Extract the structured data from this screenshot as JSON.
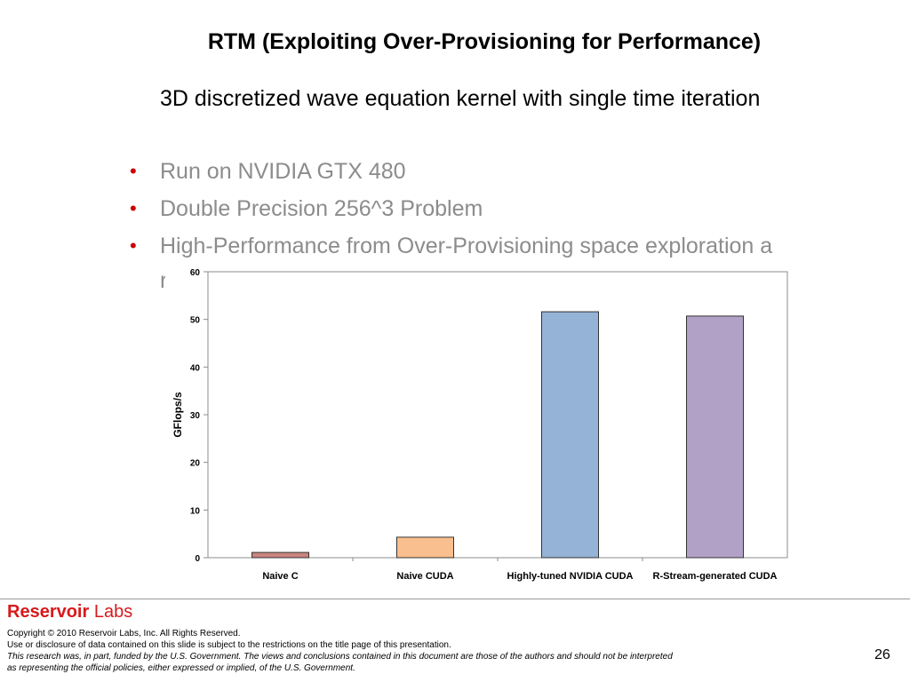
{
  "slide": {
    "title": "RTM (Exploiting Over-Provisioning for Performance)",
    "intro": "3D discretized wave equation kernel with single time iteration",
    "bullets": [
      "Run on NVIDIA GTX 480",
      "Double Precision 256^3 Problem",
      "High-Performance from Over-Provisioning space exploration a",
      "r"
    ],
    "page_number": "26"
  },
  "chart_data": {
    "type": "bar",
    "categories": [
      "Naive C",
      "Naive CUDA",
      "Highly-tuned NVIDIA CUDA",
      "R-Stream-generated CUDA"
    ],
    "values": [
      1.1,
      4.3,
      51.6,
      50.7
    ],
    "colors": [
      "#c9857f",
      "#f9bf8e",
      "#95b3d7",
      "#b2a1c7"
    ],
    "ylabel": "GFlops/s",
    "ylim": [
      0,
      60
    ],
    "yticks": [
      "0",
      "10",
      "20",
      "30",
      "40",
      "50",
      "60"
    ],
    "grid": false
  },
  "footer": {
    "logo_bold": "Reservoir",
    "logo_light": "Labs",
    "copyright": "Copyright © 2010 Reservoir Labs, Inc.  All Rights Reserved.",
    "disclosure": "Use or disclosure of data contained on this slide is subject to the restrictions on the title page of this presentation.",
    "funding_line1": "This research was, in part, funded by the U.S. Government.  The views and conclusions contained in this document are those of the authors and should not be interpreted",
    "funding_line2": "as representing the official policies, either expressed or implied, of the U.S. Government."
  }
}
